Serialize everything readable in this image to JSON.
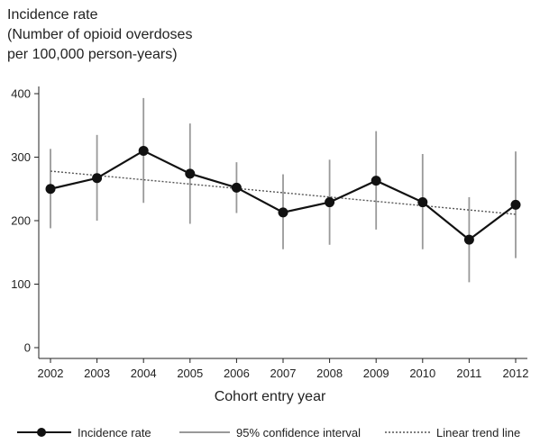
{
  "chart_data": {
    "type": "line",
    "ylabel_lines": [
      "Incidence rate",
      "(Number of opioid overdoses",
      "per 100,000 person-years)"
    ],
    "xlabel": "Cohort entry year",
    "x": [
      2002,
      2003,
      2004,
      2005,
      2006,
      2007,
      2008,
      2009,
      2010,
      2011,
      2012
    ],
    "ylim": [
      0,
      420
    ],
    "yticks": [
      0,
      100,
      200,
      300,
      400
    ],
    "grid": false,
    "series": [
      {
        "name": "Incidence rate",
        "values": [
          250,
          267,
          310,
          274,
          252,
          213,
          229,
          263,
          229,
          170,
          225
        ],
        "ci_lower": [
          188,
          200,
          228,
          195,
          212,
          155,
          162,
          186,
          155,
          103,
          141
        ],
        "ci_upper": [
          313,
          335,
          393,
          353,
          292,
          273,
          296,
          341,
          305,
          237,
          309
        ]
      }
    ],
    "trend_line": {
      "name": "Linear trend line",
      "start": [
        2002,
        278
      ],
      "end": [
        2012,
        210
      ]
    },
    "legend": {
      "placement": "bottom",
      "entries": [
        "Incidence rate",
        "95% confidence interval",
        "Linear trend line"
      ]
    }
  }
}
